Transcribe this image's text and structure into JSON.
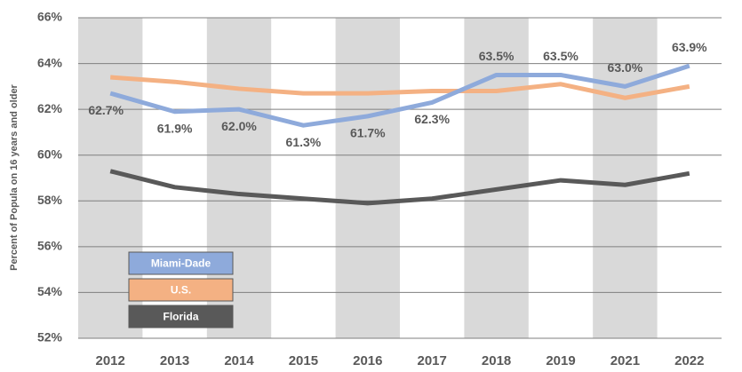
{
  "chart_data": {
    "type": "line",
    "y_axis_label": "Percent of Popula on 16 years and older",
    "categories": [
      "2012",
      "2013",
      "2014",
      "2015",
      "2016",
      "2017",
      "2018",
      "2019",
      "2021",
      "2022"
    ],
    "series": [
      {
        "name": "Miami-Dade",
        "color": "#8eaadb",
        "values": [
          62.7,
          61.9,
          62.0,
          61.3,
          61.7,
          62.3,
          63.5,
          63.5,
          63.0,
          63.9
        ],
        "value_labels": [
          "62.7%",
          "61.9%",
          "62.0%",
          "61.3%",
          "61.7%",
          "62.3%",
          "63.5%",
          "63.5%",
          "63.0%",
          "63.9%"
        ]
      },
      {
        "name": "U.S.",
        "color": "#f4b183",
        "values": [
          63.4,
          63.2,
          62.9,
          62.7,
          62.7,
          62.8,
          62.8,
          63.1,
          62.5,
          63.0
        ]
      },
      {
        "name": "Florida",
        "color": "#595959",
        "values": [
          59.3,
          58.6,
          58.3,
          58.1,
          57.9,
          58.1,
          58.5,
          58.9,
          58.7,
          59.2
        ]
      }
    ],
    "ylim": [
      52,
      66
    ],
    "yticks": [
      {
        "value": 52,
        "label": "52%"
      },
      {
        "value": 54,
        "label": "54%"
      },
      {
        "value": 56,
        "label": "56%"
      },
      {
        "value": 58,
        "label": "58%"
      },
      {
        "value": 60,
        "label": "60%"
      },
      {
        "value": 62,
        "label": "62%"
      },
      {
        "value": 64,
        "label": "64%"
      },
      {
        "value": 66,
        "label": "66%"
      }
    ],
    "grid": true,
    "legend": "lower left"
  }
}
